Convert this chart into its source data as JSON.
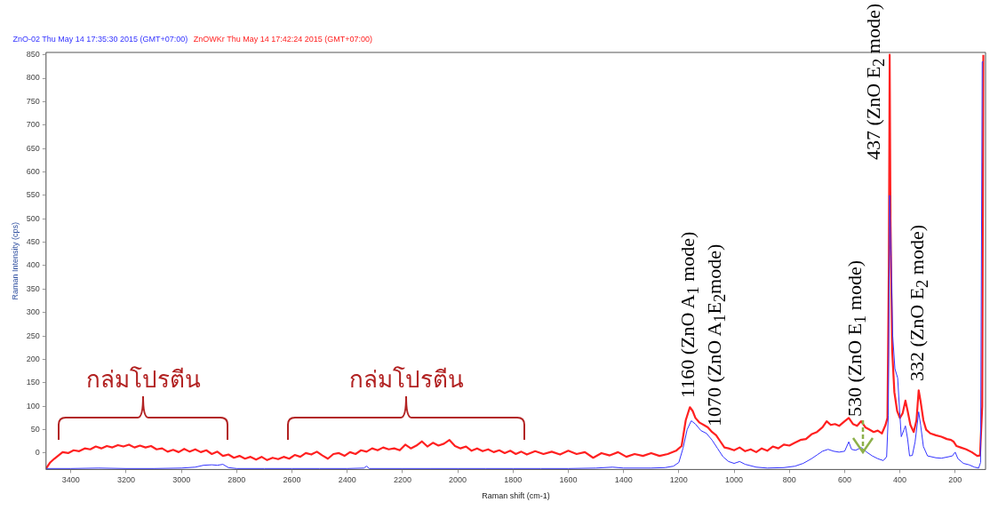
{
  "chart_data": {
    "type": "line",
    "xlabel": "Raman shift (cm-1)",
    "ylabel": "Raman Intensity (cps)",
    "xlim": [
      3490,
      90
    ],
    "xticks": [
      3400,
      3200,
      3000,
      2800,
      2600,
      2400,
      2200,
      2000,
      1800,
      1600,
      1400,
      1200,
      1000,
      800,
      600,
      400,
      200
    ],
    "ylim": [
      -35,
      855
    ],
    "yticks": [
      0,
      50,
      100,
      150,
      200,
      250,
      300,
      350,
      400,
      450,
      500,
      550,
      600,
      650,
      700,
      750,
      800,
      850
    ],
    "grid": false,
    "legend": "top left",
    "marker": "none",
    "line_style": "solid",
    "series": [
      {
        "name": "ZnO-02 Thu May 14 17:35:30 2015 (GMT+07:00)",
        "color": "#3333ff",
        "x": [
          3490,
          3400,
          3300,
          3200,
          3100,
          3000,
          2950,
          2920,
          2890,
          2870,
          2850,
          2830,
          2800,
          2700,
          2600,
          2500,
          2400,
          2340,
          2330,
          2320,
          2200,
          2100,
          2000,
          1900,
          1800,
          1700,
          1600,
          1500,
          1440,
          1400,
          1300,
          1250,
          1220,
          1200,
          1185,
          1170,
          1155,
          1140,
          1120,
          1100,
          1080,
          1060,
          1040,
          1020,
          1000,
          980,
          960,
          920,
          880,
          820,
          780,
          750,
          720,
          700,
          680,
          660,
          640,
          620,
          600,
          585,
          575,
          560,
          540,
          520,
          500,
          480,
          460,
          448,
          442,
          437,
          432,
          426,
          418,
          408,
          400,
          395,
          385,
          380,
          372,
          365,
          355,
          345,
          332,
          325,
          315,
          300,
          270,
          250,
          225,
          210,
          200,
          190,
          170,
          150,
          130,
          115,
          108,
          102,
          98
        ],
        "values": [
          -33,
          -33,
          -32,
          -33,
          -33,
          -32,
          -30,
          -26,
          -25,
          -26,
          -24,
          -31,
          -33,
          -33,
          -33,
          -33,
          -33,
          -32,
          -28,
          -33,
          -33,
          -33,
          -33,
          -33,
          -33,
          -33,
          -33,
          -32,
          -30,
          -32,
          -32,
          -31,
          -28,
          -20,
          10,
          50,
          69,
          62,
          48,
          42,
          28,
          10,
          -8,
          -18,
          -22,
          -18,
          -24,
          -30,
          -32,
          -31,
          -28,
          -22,
          -12,
          -4,
          4,
          8,
          4,
          2,
          4,
          24,
          8,
          6,
          12,
          2,
          -6,
          -12,
          -16,
          -8,
          80,
          550,
          420,
          250,
          180,
          160,
          80,
          35,
          50,
          58,
          30,
          -6,
          -5,
          24,
          88,
          60,
          14,
          -6,
          -10,
          -11,
          -8,
          -6,
          2,
          -12,
          -22,
          -25,
          -30,
          -32,
          -20,
          835,
          835
        ]
      },
      {
        "name": "ZnOWKr Thu May 14 17:42:24 2015 (GMT+07:00)",
        "color": "#ff2020",
        "x": [
          3490,
          3475,
          3460,
          3445,
          3430,
          3410,
          3390,
          3370,
          3350,
          3330,
          3310,
          3290,
          3270,
          3250,
          3230,
          3210,
          3190,
          3170,
          3150,
          3130,
          3110,
          3090,
          3070,
          3050,
          3030,
          3010,
          2990,
          2970,
          2950,
          2930,
          2910,
          2890,
          2870,
          2850,
          2830,
          2810,
          2790,
          2770,
          2750,
          2730,
          2710,
          2690,
          2670,
          2650,
          2630,
          2610,
          2590,
          2570,
          2550,
          2530,
          2510,
          2490,
          2470,
          2450,
          2430,
          2410,
          2390,
          2370,
          2350,
          2330,
          2310,
          2290,
          2270,
          2250,
          2230,
          2210,
          2190,
          2170,
          2150,
          2130,
          2110,
          2090,
          2070,
          2050,
          2030,
          2010,
          1990,
          1970,
          1950,
          1930,
          1910,
          1890,
          1870,
          1850,
          1830,
          1810,
          1790,
          1770,
          1750,
          1720,
          1690,
          1660,
          1630,
          1600,
          1570,
          1540,
          1510,
          1480,
          1450,
          1420,
          1390,
          1360,
          1330,
          1300,
          1270,
          1240,
          1210,
          1190,
          1175,
          1160,
          1150,
          1140,
          1125,
          1110,
          1095,
          1080,
          1065,
          1050,
          1035,
          1020,
          1000,
          980,
          960,
          940,
          920,
          900,
          880,
          860,
          840,
          820,
          800,
          780,
          760,
          740,
          720,
          700,
          680,
          665,
          650,
          635,
          620,
          600,
          585,
          570,
          555,
          540,
          525,
          510,
          495,
          480,
          465,
          452,
          445,
          440,
          437,
          434,
          428,
          420,
          410,
          400,
          390,
          380,
          372,
          362,
          350,
          340,
          332,
          325,
          315,
          305,
          290,
          270,
          250,
          230,
          215,
          205,
          195,
          180,
          160,
          140,
          120,
          110,
          102,
          98
        ],
        "values": [
          -33,
          -20,
          -12,
          -5,
          2,
          0,
          6,
          4,
          10,
          8,
          14,
          10,
          15,
          12,
          17,
          14,
          18,
          12,
          16,
          12,
          15,
          8,
          10,
          3,
          7,
          2,
          9,
          3,
          8,
          2,
          6,
          -2,
          3,
          -6,
          -3,
          -10,
          -6,
          -12,
          -8,
          -14,
          -8,
          -15,
          -10,
          -13,
          -8,
          -12,
          -4,
          -8,
          0,
          -3,
          3,
          -5,
          -12,
          -2,
          0,
          -6,
          2,
          -2,
          6,
          3,
          10,
          6,
          12,
          8,
          10,
          6,
          18,
          10,
          16,
          25,
          14,
          22,
          16,
          20,
          28,
          15,
          10,
          14,
          5,
          10,
          4,
          8,
          2,
          6,
          0,
          5,
          -2,
          3,
          -3,
          4,
          -2,
          3,
          -3,
          5,
          -2,
          2,
          -10,
          0,
          -5,
          2,
          -8,
          -2,
          -6,
          0,
          -6,
          -2,
          5,
          15,
          70,
          98,
          90,
          75,
          65,
          60,
          55,
          45,
          38,
          25,
          12,
          10,
          6,
          12,
          4,
          8,
          2,
          10,
          5,
          14,
          10,
          18,
          16,
          22,
          28,
          30,
          40,
          45,
          55,
          68,
          60,
          62,
          58,
          68,
          75,
          62,
          58,
          68,
          55,
          50,
          45,
          48,
          42,
          60,
          75,
          400,
          850,
          500,
          220,
          130,
          90,
          75,
          85,
          112,
          90,
          60,
          45,
          70,
          134,
          110,
          70,
          50,
          42,
          38,
          35,
          30,
          28,
          24,
          15,
          12,
          8,
          2,
          -6,
          -5,
          100,
          850
        ]
      }
    ],
    "annotations": [
      "กล่มโปรตีน",
      "กล่มโปรตีน",
      {
        "text": "1160 (ZnO A$_{1}$ mode)",
        "x": 1160,
        "y": 98
      },
      {
        "text": "1070 (ZnO A$_{1}$E$_{2}$mode)",
        "x": 1065,
        "y": 38
      },
      {
        "text": "530 (ZnO E$_{1}$ mode)",
        "x": 555,
        "y": 58
      },
      {
        "text": "437 (ZnO E$_{2}$ mode)",
        "x": 437,
        "y": 850
      },
      {
        "text": "332 (ZnO E$_{2}$ mode)",
        "x": 332,
        "y": 134
      }
    ]
  }
}
